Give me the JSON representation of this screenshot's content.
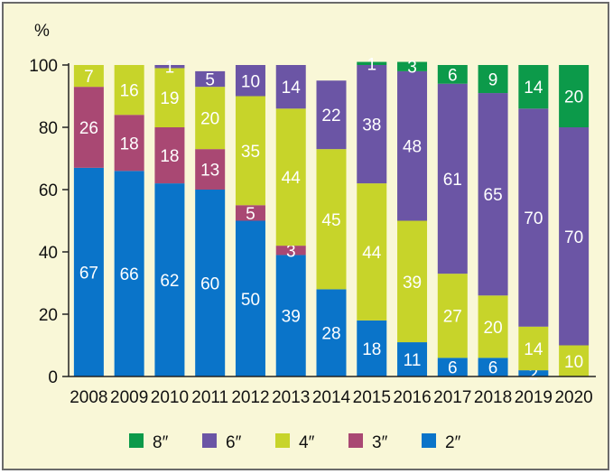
{
  "chart_data": {
    "type": "bar",
    "stacked": true,
    "ylabel": "%",
    "ylim": [
      0,
      100
    ],
    "yticks": [
      0,
      20,
      40,
      60,
      80,
      100
    ],
    "categories": [
      "2008",
      "2009",
      "2010",
      "2011",
      "2012",
      "2013",
      "2014",
      "2015",
      "2016",
      "2017",
      "2018",
      "2019",
      "2020"
    ],
    "series": [
      {
        "name": "2″",
        "color": "#0a74c9",
        "values": [
          67,
          66,
          62,
          60,
          50,
          39,
          28,
          18,
          11,
          6,
          6,
          2,
          0
        ]
      },
      {
        "name": "3″",
        "color": "#a94873",
        "values": [
          26,
          18,
          18,
          13,
          5,
          3,
          0,
          0,
          0,
          0,
          0,
          0,
          0
        ]
      },
      {
        "name": "4″",
        "color": "#c7d42a",
        "values": [
          7,
          16,
          19,
          20,
          35,
          44,
          45,
          44,
          39,
          27,
          20,
          14,
          10
        ]
      },
      {
        "name": "6″",
        "color": "#6b55a5",
        "values": [
          0,
          0,
          1,
          5,
          10,
          14,
          22,
          38,
          48,
          61,
          65,
          70,
          70
        ]
      },
      {
        "name": "8″",
        "color": "#0c9a4a",
        "values": [
          0,
          0,
          0,
          0,
          0,
          0,
          0,
          1,
          3,
          6,
          9,
          14,
          20
        ]
      }
    ],
    "legend_order": [
      "8″",
      "6″",
      "4″",
      "3″",
      "2″"
    ],
    "legend_position": "bottom"
  }
}
